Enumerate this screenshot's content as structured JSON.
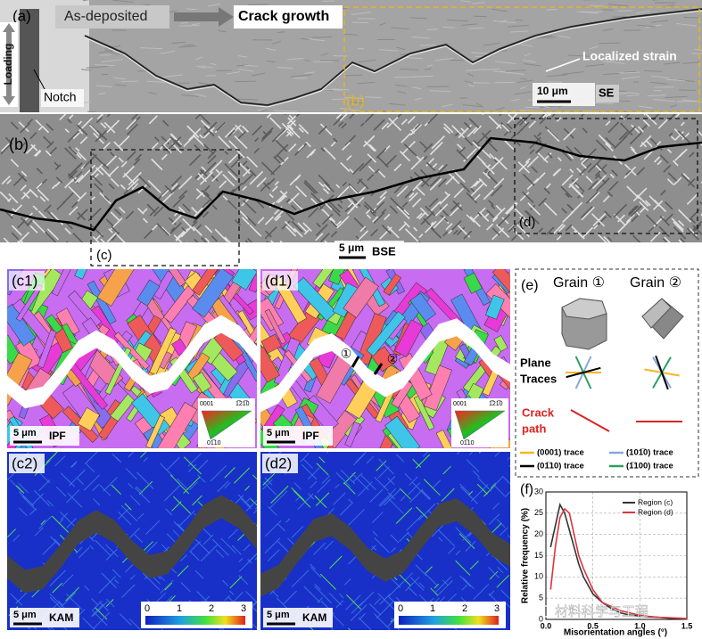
{
  "figure": {
    "a": {
      "label": "(a)",
      "stage1": "As-deposited",
      "stage2": "Crack growth",
      "loading": "Loading",
      "notch": "Notch",
      "strain": "Localized strain",
      "scale": "10 μm",
      "mode": "SE",
      "inset": "(b)"
    },
    "b": {
      "label": "(b)",
      "box_c": "(c)",
      "box_d": "(d)",
      "scale": "5 μm",
      "mode": "BSE"
    },
    "c1": {
      "label": "(c1)",
      "scale": "5 μm",
      "mode": "IPF",
      "key": [
        "0001",
        "1̅21̅0",
        "01̅10"
      ]
    },
    "d1": {
      "label": "(d1)",
      "scale": "5 μm",
      "mode": "IPF",
      "grain1": "①",
      "grain2": "②",
      "key": [
        "0001",
        "1̅21̅0",
        "01̅10"
      ]
    },
    "e": {
      "label": "(e)",
      "grain1": "Grain ①",
      "grain2": "Grain ②",
      "traces": [
        "Plane",
        "Traces"
      ],
      "crack": [
        "Crack",
        "path"
      ],
      "legend": [
        "(0001) trace",
        "(101̅0) trace",
        "(01̅10) trace",
        "(1̅100) trace"
      ]
    },
    "c2": {
      "label": "(c2)",
      "scale": "5 μm",
      "mode": "KAM",
      "colorbar": [
        0,
        1,
        2,
        3
      ]
    },
    "d2": {
      "label": "(d2)",
      "scale": "5 μm",
      "mode": "KAM",
      "colorbar": [
        0,
        1,
        2,
        3
      ]
    },
    "watermark": "材料科学与工程"
  },
  "chart_data": {
    "type": "line",
    "title": "(f)",
    "xlabel": "Misorientation angles (°)",
    "ylabel": "Relative frequency (%)",
    "x": [
      0.05,
      0.1,
      0.15,
      0.2,
      0.25,
      0.3,
      0.35,
      0.4,
      0.5,
      0.6,
      0.7,
      0.8,
      0.9,
      1.0,
      1.1,
      1.2,
      1.3,
      1.4,
      1.5
    ],
    "series": [
      {
        "name": "Region (c)",
        "color": "#333333",
        "values": [
          17,
          22,
          27,
          25,
          21,
          17,
          13,
          10,
          6,
          4,
          2.5,
          1.5,
          1,
          0.8,
          0.6,
          0.5,
          0.3,
          0.2,
          0.1
        ]
      },
      {
        "name": "Region (d)",
        "color": "#d9363e",
        "values": [
          7,
          17,
          24,
          26,
          25,
          20,
          15,
          12,
          7,
          4,
          3,
          2,
          1.5,
          1,
          0.7,
          0.5,
          0.4,
          0.3,
          0.2
        ]
      }
    ],
    "xlim": [
      0,
      1.5
    ],
    "ylim": [
      0,
      30
    ],
    "xticks": [
      {
        "value": 0,
        "label": "0.0"
      },
      0.5,
      {
        "value": 1,
        "label": "1.0"
      },
      1.5
    ],
    "yticks": [
      0,
      5,
      10,
      15,
      20,
      25,
      30
    ],
    "grid": true,
    "legend": "upper right"
  }
}
